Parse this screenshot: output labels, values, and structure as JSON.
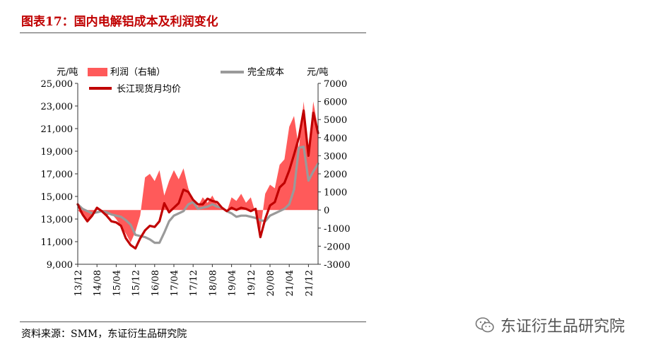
{
  "title": "图表17：国内电解铝成本及利润变化",
  "source": "资料来源：SMM，东证衍生品研究院",
  "watermark": "东证衍生品研究院",
  "chart_data": {
    "type": "area+line",
    "left_unit": "元/吨",
    "right_unit": "元/吨",
    "left_axis": {
      "ylim": [
        9000,
        25000
      ],
      "ticks": [
        9000,
        11000,
        13000,
        15000,
        17000,
        19000,
        21000,
        23000,
        25000
      ],
      "tick_labels": [
        "9,000",
        "11,000",
        "13,000",
        "15,000",
        "17,000",
        "19,000",
        "21,000",
        "23,000",
        "25,000"
      ]
    },
    "right_axis": {
      "ylim": [
        -3000,
        7000
      ],
      "ticks": [
        -3000,
        -2000,
        -1000,
        0,
        1000,
        2000,
        3000,
        4000,
        5000,
        6000,
        7000
      ]
    },
    "x_ticks": [
      "13/12",
      "14/08",
      "15/04",
      "15/12",
      "16/08",
      "17/04",
      "17/12",
      "18/08",
      "19/04",
      "19/12",
      "20/08",
      "21/04",
      "21/12"
    ],
    "x_range": [
      "2013-12",
      "2022-04"
    ],
    "series": [
      {
        "name": "利润（右轴）",
        "kind": "area",
        "axis": "right",
        "color": "#ff5a5a",
        "x": [
          "2013-12",
          "2014-02",
          "2014-04",
          "2014-06",
          "2014-08",
          "2014-10",
          "2014-12",
          "2015-02",
          "2015-04",
          "2015-06",
          "2015-08",
          "2015-10",
          "2015-12",
          "2016-02",
          "2016-04",
          "2016-06",
          "2016-08",
          "2016-10",
          "2016-12",
          "2017-02",
          "2017-04",
          "2017-06",
          "2017-08",
          "2017-10",
          "2017-12",
          "2018-02",
          "2018-04",
          "2018-06",
          "2018-08",
          "2018-10",
          "2018-12",
          "2019-02",
          "2019-04",
          "2019-06",
          "2019-08",
          "2019-10",
          "2019-12",
          "2020-02",
          "2020-04",
          "2020-06",
          "2020-08",
          "2020-10",
          "2020-12",
          "2021-02",
          "2021-04",
          "2021-06",
          "2021-08",
          "2021-10",
          "2021-12",
          "2022-02",
          "2022-04"
        ],
        "values": [
          0,
          -300,
          -700,
          -400,
          200,
          -100,
          -300,
          -200,
          -500,
          -900,
          -1300,
          -1800,
          -1200,
          -300,
          1800,
          2000,
          1600,
          2200,
          800,
          1600,
          2200,
          1700,
          2300,
          1200,
          500,
          200,
          700,
          400,
          800,
          300,
          100,
          -100,
          700,
          500,
          900,
          400,
          700,
          -200,
          -1100,
          900,
          1400,
          1200,
          2500,
          2800,
          4600,
          5200,
          3400,
          6000,
          3200,
          6000,
          4500
        ]
      },
      {
        "name": "完全成本",
        "kind": "line",
        "axis": "left",
        "color": "#9a9a9a",
        "x": [
          "2013-12",
          "2014-02",
          "2014-04",
          "2014-06",
          "2014-08",
          "2014-10",
          "2014-12",
          "2015-02",
          "2015-04",
          "2015-06",
          "2015-08",
          "2015-10",
          "2015-12",
          "2016-02",
          "2016-04",
          "2016-06",
          "2016-08",
          "2016-10",
          "2016-12",
          "2017-02",
          "2017-04",
          "2017-06",
          "2017-08",
          "2017-10",
          "2017-12",
          "2018-02",
          "2018-04",
          "2018-06",
          "2018-08",
          "2018-10",
          "2018-12",
          "2019-02",
          "2019-04",
          "2019-06",
          "2019-08",
          "2019-10",
          "2019-12",
          "2020-02",
          "2020-04",
          "2020-06",
          "2020-08",
          "2020-10",
          "2020-12",
          "2021-02",
          "2021-04",
          "2021-06",
          "2021-08",
          "2021-10",
          "2021-12",
          "2022-02",
          "2022-04"
        ],
        "values": [
          14300,
          13900,
          13700,
          13500,
          13600,
          13700,
          13600,
          13400,
          13300,
          13200,
          12900,
          12500,
          11600,
          11500,
          11400,
          11200,
          10900,
          10900,
          11800,
          12800,
          13300,
          13500,
          13700,
          14300,
          14500,
          13900,
          14000,
          14100,
          14300,
          14100,
          14000,
          13700,
          13500,
          13200,
          13300,
          13300,
          13200,
          13100,
          12900,
          12800,
          13300,
          13500,
          13700,
          13900,
          14300,
          15600,
          19300,
          19400,
          16400,
          17200,
          17900
        ]
      },
      {
        "name": "长江现货月均价",
        "kind": "line",
        "axis": "left",
        "color": "#c00000",
        "x": [
          "2013-12",
          "2014-02",
          "2014-04",
          "2014-06",
          "2014-08",
          "2014-10",
          "2014-12",
          "2015-02",
          "2015-04",
          "2015-06",
          "2015-08",
          "2015-10",
          "2015-12",
          "2016-02",
          "2016-04",
          "2016-06",
          "2016-08",
          "2016-10",
          "2016-12",
          "2017-02",
          "2017-04",
          "2017-06",
          "2017-08",
          "2017-10",
          "2017-12",
          "2018-02",
          "2018-04",
          "2018-06",
          "2018-08",
          "2018-10",
          "2018-12",
          "2019-02",
          "2019-04",
          "2019-06",
          "2019-08",
          "2019-10",
          "2019-12",
          "2020-02",
          "2020-04",
          "2020-06",
          "2020-08",
          "2020-10",
          "2020-12",
          "2021-02",
          "2021-04",
          "2021-06",
          "2021-08",
          "2021-10",
          "2021-12",
          "2022-02",
          "2022-04"
        ],
        "values": [
          14300,
          13400,
          12800,
          13300,
          14000,
          13700,
          13300,
          12800,
          12700,
          12400,
          11300,
          10700,
          10400,
          11300,
          12000,
          12400,
          12300,
          12800,
          14400,
          13600,
          14000,
          14400,
          15600,
          15400,
          14700,
          14300,
          14300,
          14800,
          14600,
          14500,
          14000,
          13700,
          14000,
          13800,
          14000,
          13900,
          13700,
          13900,
          11400,
          13000,
          14200,
          14500,
          15800,
          16200,
          17300,
          18700,
          20200,
          22600,
          18600,
          22400,
          20600
        ]
      }
    ],
    "legend": [
      "利润（右轴）",
      "完全成本",
      "长江现货月均价"
    ]
  }
}
